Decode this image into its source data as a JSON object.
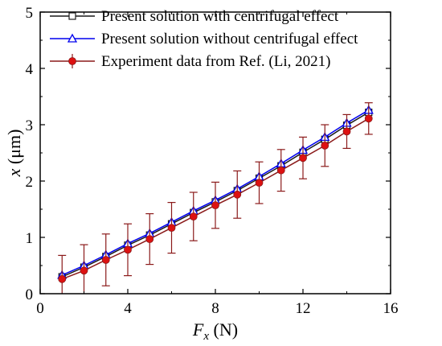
{
  "chart_data": {
    "type": "line",
    "xlabel_var": "F",
    "xlabel_sub": "x",
    "xlabel_unit": " (N)",
    "ylabel_var": "x",
    "ylabel_unit": " (μm)",
    "xlim": [
      0,
      16
    ],
    "ylim": [
      0,
      5
    ],
    "xticks": [
      0,
      4,
      8,
      12,
      16
    ],
    "yticks": [
      0,
      1,
      2,
      3,
      4,
      5
    ],
    "grid": false,
    "legend_position": "top-left",
    "series": [
      {
        "name": "Present solution with centrifugal effect",
        "color": "#1a1a1a",
        "marker": "square",
        "x": [
          1,
          2,
          3,
          4,
          5,
          6,
          7,
          8,
          9,
          10,
          11,
          12,
          13,
          14,
          15
        ],
        "y": [
          0.3,
          0.47,
          0.66,
          0.86,
          1.04,
          1.24,
          1.44,
          1.63,
          1.83,
          2.05,
          2.27,
          2.51,
          2.74,
          2.99,
          3.22
        ]
      },
      {
        "name": "Present solution without centrifugal effect",
        "color": "#0000ee",
        "marker": "triangle",
        "x": [
          1,
          2,
          3,
          4,
          5,
          6,
          7,
          8,
          9,
          10,
          11,
          12,
          13,
          14,
          15
        ],
        "y": [
          0.33,
          0.5,
          0.69,
          0.89,
          1.07,
          1.27,
          1.47,
          1.66,
          1.86,
          2.08,
          2.31,
          2.55,
          2.78,
          3.03,
          3.26
        ]
      },
      {
        "name": "Experiment data from Ref. (Li, 2021)",
        "color": "#8b1a1a",
        "marker": "circle",
        "x": [
          1,
          2,
          3,
          4,
          5,
          6,
          7,
          8,
          9,
          10,
          11,
          12,
          13,
          14,
          15
        ],
        "y": [
          0.26,
          0.41,
          0.6,
          0.78,
          0.97,
          1.17,
          1.37,
          1.57,
          1.76,
          1.97,
          2.19,
          2.41,
          2.63,
          2.88,
          3.11
        ],
        "error": [
          0.42,
          0.46,
          0.46,
          0.46,
          0.45,
          0.45,
          0.43,
          0.41,
          0.42,
          0.37,
          0.37,
          0.37,
          0.37,
          0.3,
          0.28
        ]
      }
    ]
  }
}
